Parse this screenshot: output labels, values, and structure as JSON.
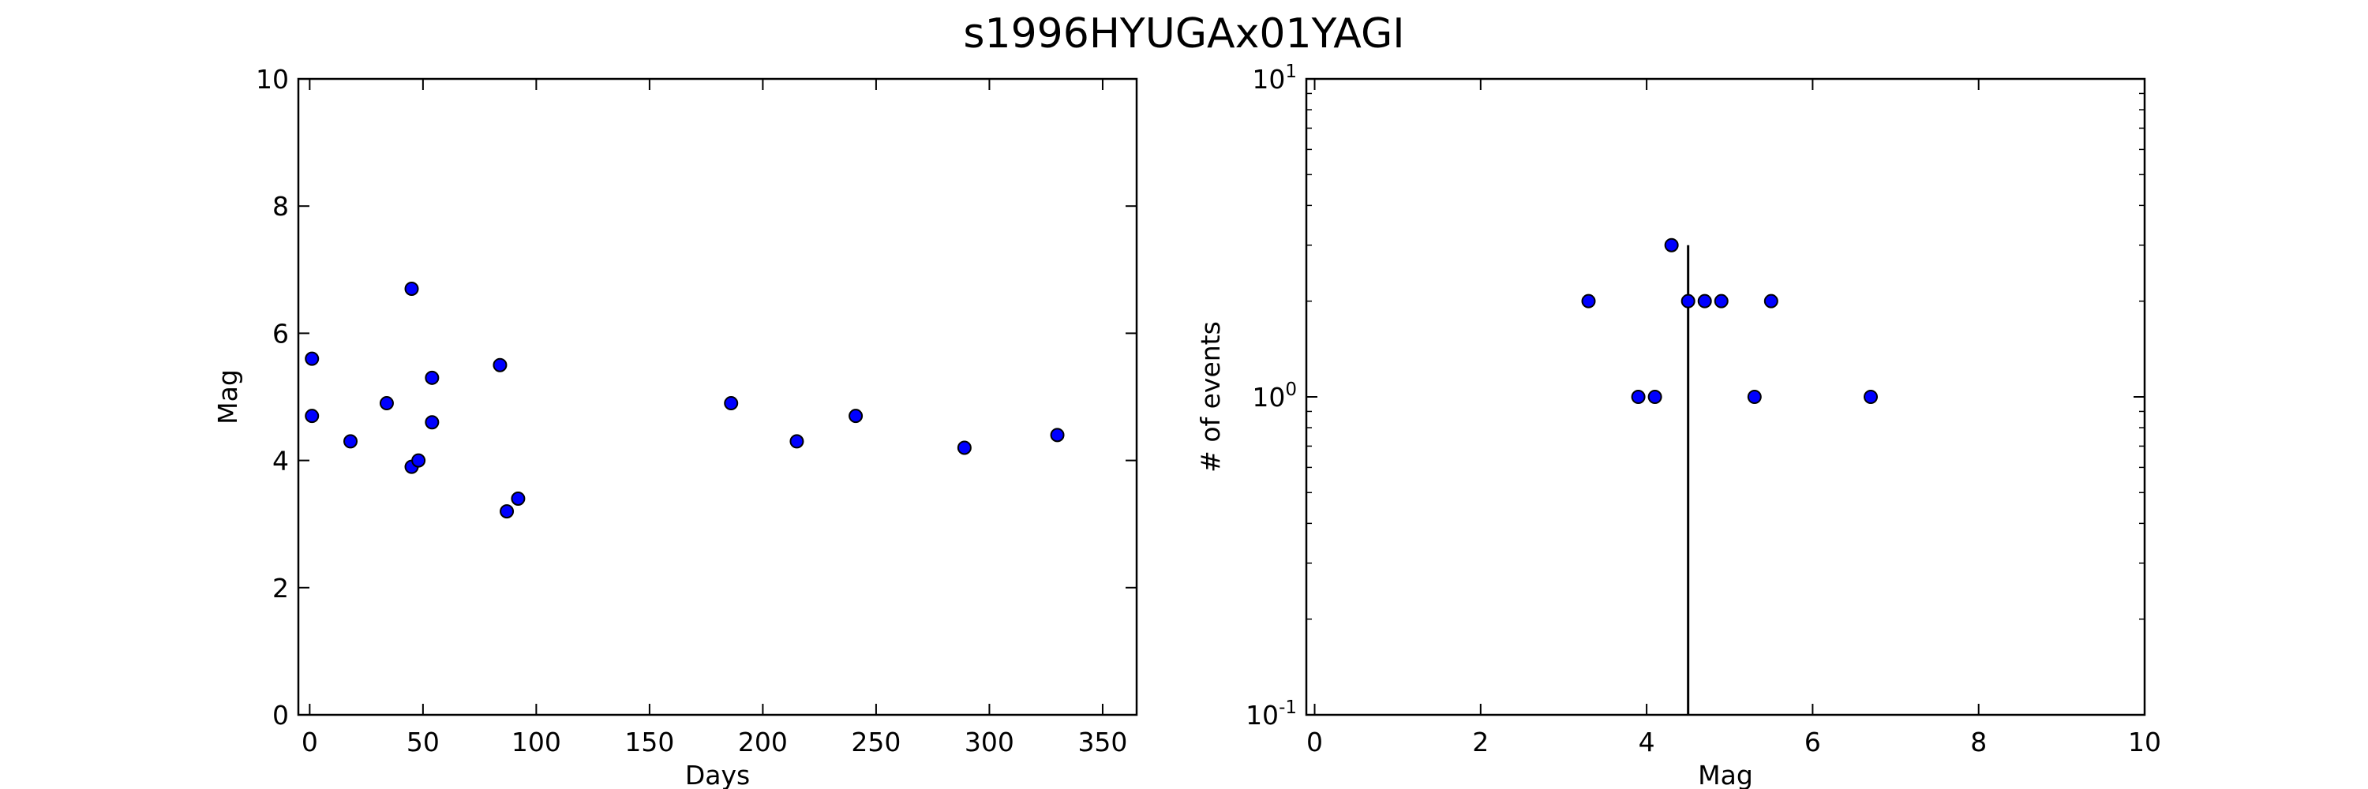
{
  "title": "s1996HYUGAx01YAGI",
  "chart_data": [
    {
      "type": "scatter",
      "xlabel": "Days",
      "ylabel": "Mag",
      "xlim": [
        -5,
        365
      ],
      "ylim": [
        0,
        10
      ],
      "xticks": [
        0,
        50,
        100,
        150,
        200,
        250,
        300,
        350
      ],
      "yticks": [
        0,
        2,
        4,
        6,
        8,
        10
      ],
      "x_tick_labels": [
        "0",
        "50",
        "100",
        "150",
        "200",
        "250",
        "300",
        "350"
      ],
      "y_tick_labels": [
        "0",
        "2",
        "4",
        "6",
        "8",
        "10"
      ],
      "marker_color": "#0000ff",
      "points": [
        {
          "x": 1,
          "y": 5.6
        },
        {
          "x": 1,
          "y": 4.7
        },
        {
          "x": 18,
          "y": 4.3
        },
        {
          "x": 34,
          "y": 4.9
        },
        {
          "x": 45,
          "y": 6.7
        },
        {
          "x": 45,
          "y": 3.9
        },
        {
          "x": 48,
          "y": 4.0
        },
        {
          "x": 54,
          "y": 5.3
        },
        {
          "x": 54,
          "y": 4.6
        },
        {
          "x": 84,
          "y": 5.5
        },
        {
          "x": 87,
          "y": 3.2
        },
        {
          "x": 92,
          "y": 3.4
        },
        {
          "x": 186,
          "y": 4.9
        },
        {
          "x": 215,
          "y": 4.3
        },
        {
          "x": 241,
          "y": 4.7
        },
        {
          "x": 289,
          "y": 4.2
        },
        {
          "x": 330,
          "y": 4.4
        }
      ]
    },
    {
      "type": "scatter",
      "xlabel": "Mag",
      "ylabel": "# of events",
      "xlim": [
        -0.1,
        10
      ],
      "ylim": [
        0.1,
        10
      ],
      "yscale": "log",
      "xticks": [
        0,
        2,
        4,
        6,
        8,
        10
      ],
      "x_tick_labels": [
        "0",
        "2",
        "4",
        "6",
        "8",
        "10"
      ],
      "yticks": [
        0.1,
        1,
        10
      ],
      "y_tick_labels": [
        {
          "base": "10",
          "exp": "-1"
        },
        {
          "base": "10",
          "exp": "0"
        },
        {
          "base": "10",
          "exp": "1"
        }
      ],
      "marker_color": "#0000ff",
      "points": [
        {
          "x": 3.3,
          "y": 2
        },
        {
          "x": 3.9,
          "y": 1
        },
        {
          "x": 4.1,
          "y": 1
        },
        {
          "x": 4.3,
          "y": 3
        },
        {
          "x": 4.5,
          "y": 2
        },
        {
          "x": 4.7,
          "y": 2
        },
        {
          "x": 4.9,
          "y": 2
        },
        {
          "x": 5.3,
          "y": 1
        },
        {
          "x": 5.5,
          "y": 2
        },
        {
          "x": 6.7,
          "y": 1
        }
      ],
      "vertical_line": {
        "x": 4.5,
        "y_top": 3
      }
    }
  ]
}
